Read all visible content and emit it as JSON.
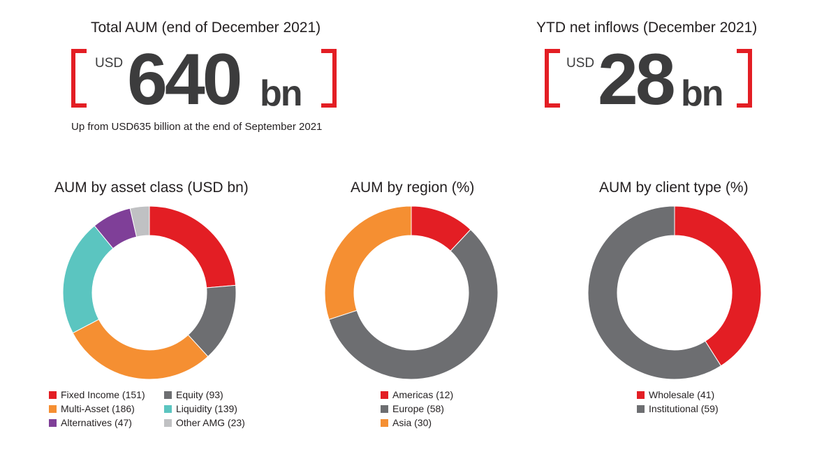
{
  "kpi_aum": {
    "title": "Total AUM (end of December 2021)",
    "unit": "USD",
    "value": "640",
    "suffix": "bn",
    "note": "Up from USD635 billion at the end of September 2021"
  },
  "kpi_inflows": {
    "title": "YTD net inflows (December 2021)",
    "unit": "USD",
    "value": "28",
    "suffix": "bn"
  },
  "colors": {
    "accent_red": "#e31e24",
    "dark_grey": "#6d6e71",
    "orange": "#f58f32",
    "teal": "#5bc5c0",
    "purple": "#7f3f98",
    "light_grey": "#c0c1c3"
  },
  "chart_data": [
    {
      "type": "pie",
      "title": "AUM by asset class (USD bn)",
      "slices": [
        {
          "label": "Fixed Income (151)",
          "value": 151,
          "color": "#e31e24"
        },
        {
          "label": "Equity (93)",
          "value": 93,
          "color": "#6d6e71"
        },
        {
          "label": "Multi-Asset (186)",
          "value": 186,
          "color": "#f58f32"
        },
        {
          "label": "Liquidity (139)",
          "value": 139,
          "color": "#5bc5c0"
        },
        {
          "label": "Alternatives (47)",
          "value": 47,
          "color": "#7f3f98"
        },
        {
          "label": "Other AMG (23)",
          "value": 23,
          "color": "#c0c1c3"
        }
      ],
      "legend": [
        "Fixed Income (151)",
        "Equity (93)",
        "Multi-Asset (186)",
        "Liquidity (139)",
        "Alternatives (47)",
        "Other AMG (23)"
      ]
    },
    {
      "type": "pie",
      "title": "AUM by region (%)",
      "slices": [
        {
          "label": "Americas (12)",
          "value": 12,
          "color": "#e31e24"
        },
        {
          "label": "Europe (58)",
          "value": 58,
          "color": "#6d6e71"
        },
        {
          "label": "Asia (30)",
          "value": 30,
          "color": "#f58f32"
        }
      ],
      "legend": [
        "Americas (12)",
        "Europe (58)",
        "Asia (30)"
      ]
    },
    {
      "type": "pie",
      "title": "AUM by client type (%)",
      "slices": [
        {
          "label": "Wholesale (41)",
          "value": 41,
          "color": "#e31e24"
        },
        {
          "label": "Institutional (59)",
          "value": 59,
          "color": "#6d6e71"
        }
      ],
      "legend": [
        "Wholesale (41)",
        "Institutional (59)"
      ]
    }
  ]
}
